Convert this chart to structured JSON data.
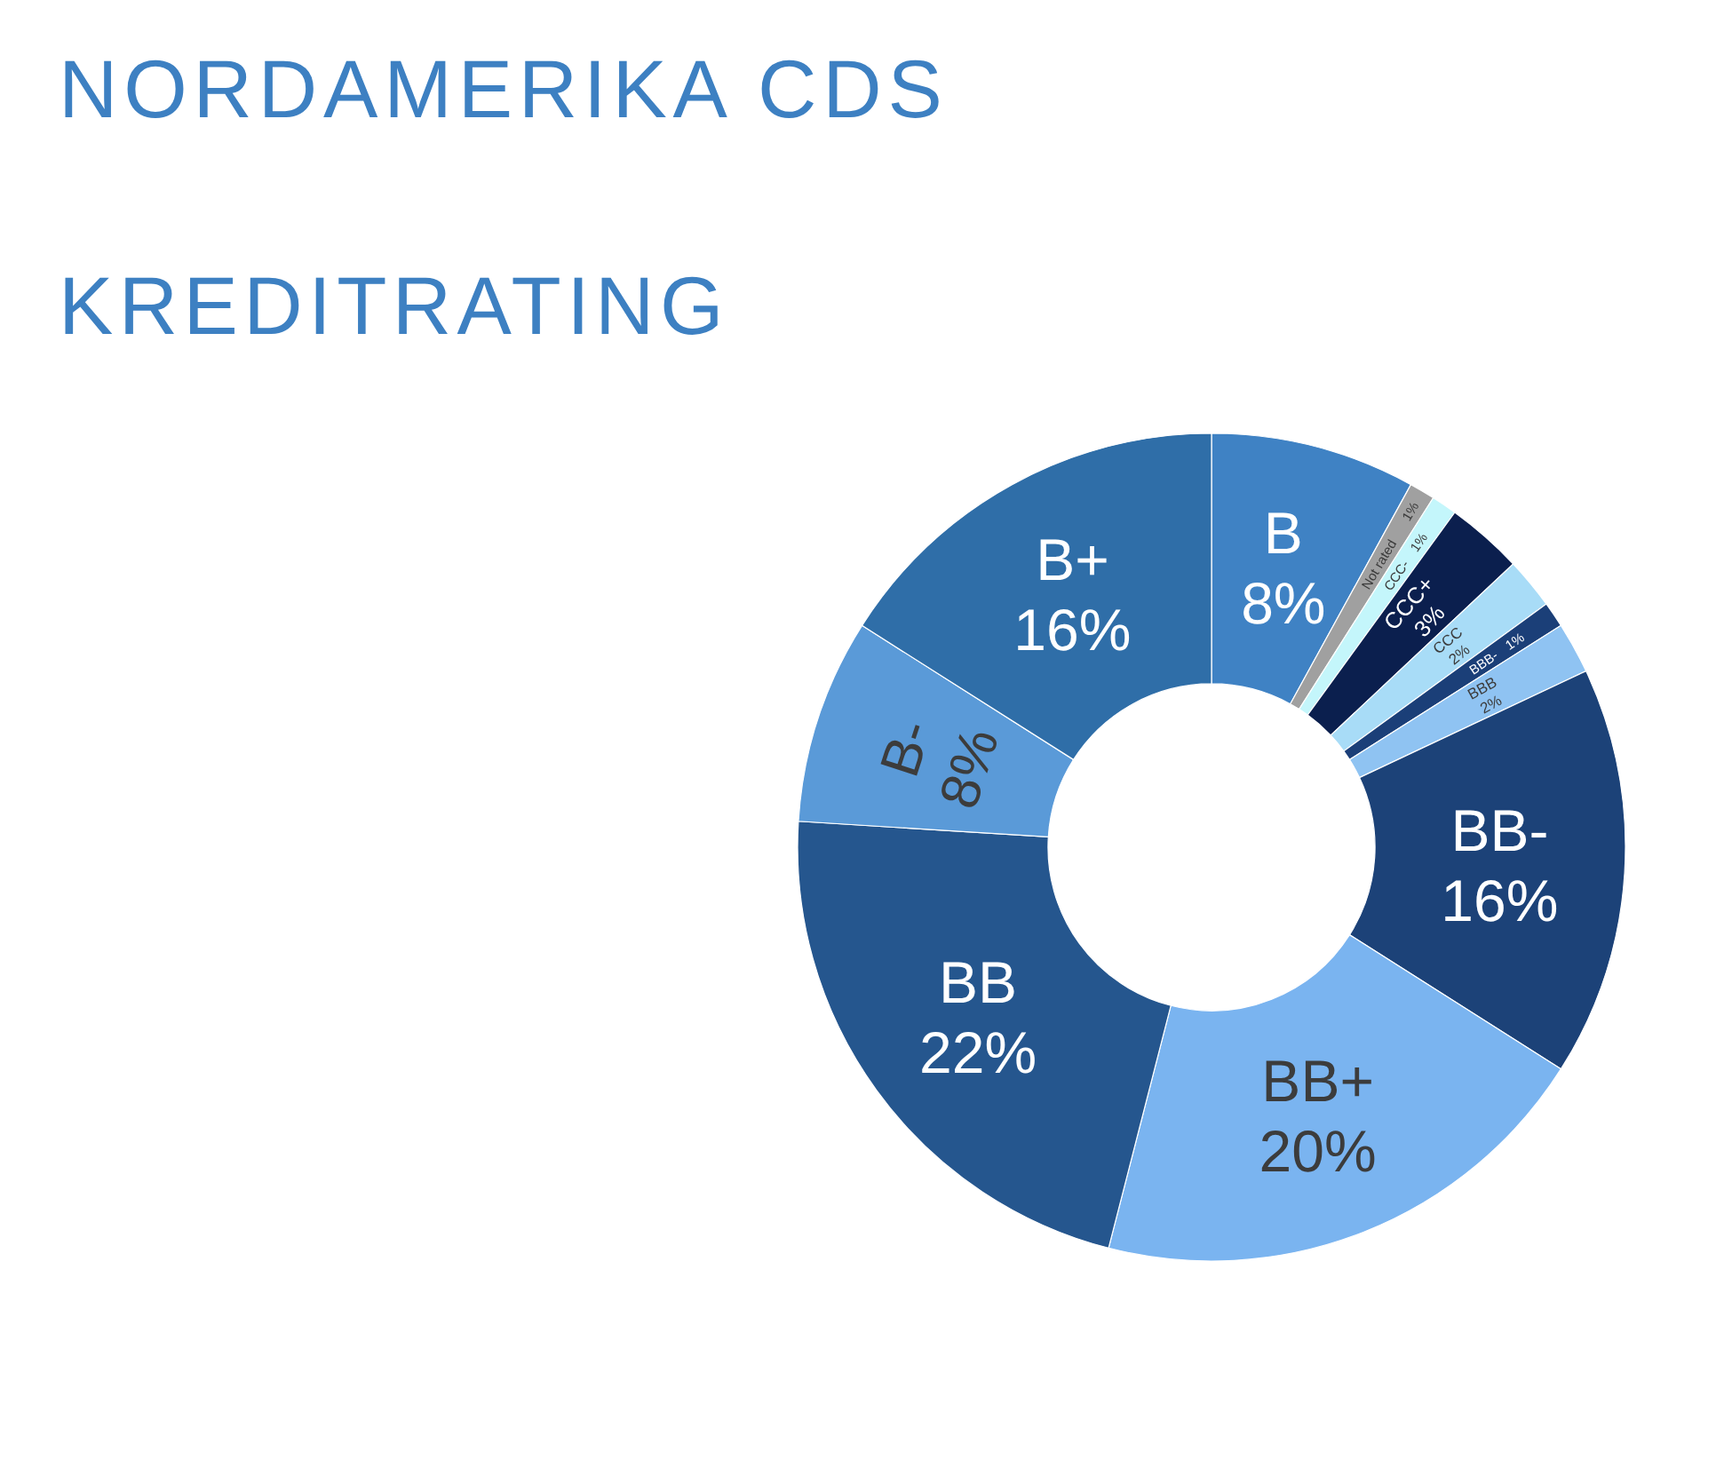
{
  "chart_data": {
    "type": "donut",
    "title": "NORDAMERIKA CDS",
    "subtitle": "KREDITRATING",
    "categories": [
      "B",
      "Not rated",
      "CCC-",
      "CCC+",
      "CCC",
      "BBB-",
      "BBB",
      "BB-",
      "BB+",
      "BB",
      "B-",
      "B+"
    ],
    "values": [
      8,
      1,
      1,
      3,
      2,
      1,
      2,
      16,
      20,
      22,
      8,
      16
    ],
    "value_labels": [
      "8%",
      "1%",
      "1%",
      "3%",
      "2%",
      "1%",
      "2%",
      "16%",
      "20%",
      "22%",
      "8%",
      "16%"
    ],
    "colors": [
      "#3f82c4",
      "#a0a0a0",
      "#c4f6fb",
      "#0b1f4e",
      "#a8dcf7",
      "#1b3f78",
      "#8fc3f2",
      "#1c4278",
      "#7ab4f0",
      "#25568e",
      "#5a9ad8",
      "#2f6ea8"
    ]
  }
}
